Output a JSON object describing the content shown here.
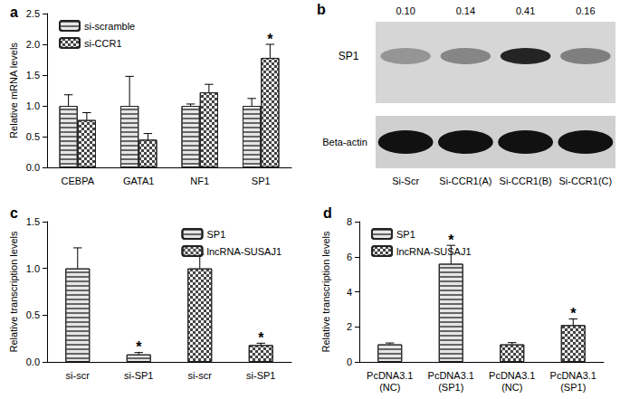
{
  "chart_data": [
    {
      "type": "bar",
      "title": "a",
      "categories": [
        "CEBPA",
        "GATA1",
        "NF1",
        "SP1"
      ],
      "series": [
        {
          "name": "si-scramble",
          "color": "#e6e6e6",
          "values": [
            1.0,
            1.0,
            1.0,
            1.0
          ],
          "errors": [
            0.18,
            0.48,
            0.03,
            0.12
          ]
        },
        {
          "name": "si-CCR1",
          "color": "#f2f2f2",
          "values": [
            0.77,
            0.45,
            1.22,
            1.78
          ],
          "errors": [
            0.12,
            0.1,
            0.13,
            0.22
          ]
        }
      ],
      "y_label": "Relative mRNA levels",
      "ylim": [
        0,
        2.5
      ],
      "yticks": [
        {
          "value": 0,
          "label": "0.0"
        },
        0.5,
        {
          "value": 1,
          "label": "1.0"
        },
        1.5,
        {
          "value": 2,
          "label": "2.0"
        },
        2.5
      ],
      "annotations": [
        {
          "text": "*",
          "category_index": 3,
          "series": "si-CCR1"
        }
      ],
      "legend": "top-left",
      "grid": false
    },
    {
      "type": "bar",
      "title": "c",
      "categories": [
        "si-scr",
        "si-SP1",
        "si-scr",
        "si-SP1"
      ],
      "series": [
        {
          "name": "SP1",
          "color": "#e6e6e6",
          "values": [
            1.0,
            0.08,
            null,
            null
          ],
          "errors": [
            0.22,
            0.02,
            null,
            null
          ]
        },
        {
          "name": "lncRNA-SUSAJ1",
          "color": "#f2f2f2",
          "values": [
            null,
            null,
            1.0,
            0.18
          ],
          "errors": [
            null,
            null,
            0.15,
            0.02
          ]
        }
      ],
      "y_label": "Relative transcription levels",
      "ylim": [
        0,
        1.5
      ],
      "yticks": [
        {
          "value": 0,
          "label": "0.0"
        },
        0.5,
        {
          "value": 1,
          "label": "1.0"
        },
        1.5
      ],
      "annotations": [
        {
          "text": "*",
          "category_index": 1,
          "series": "SP1"
        },
        {
          "text": "*",
          "category_index": 3,
          "series": "lncRNA-SUSAJ1"
        }
      ],
      "legend": "top-right",
      "grid": false
    },
    {
      "type": "bar",
      "title": "d",
      "categories": [
        "PcDNA3.1\n(NC)",
        "PcDNA3.1\n(SP1)",
        "PcDNA3.1\n(NC)",
        "PcDNA3.1\n(SP1)"
      ],
      "series": [
        {
          "name": "SP1",
          "color": "#e6e6e6",
          "values": [
            1.0,
            5.6,
            null,
            null
          ],
          "errors": [
            0.08,
            1.05,
            null,
            null
          ]
        },
        {
          "name": "lncRNA-SUSAJ1",
          "color": "#f2f2f2",
          "values": [
            null,
            null,
            1.0,
            2.1
          ],
          "errors": [
            null,
            null,
            0.1,
            0.35
          ]
        }
      ],
      "y_label": "Relative transcription levels",
      "ylim": [
        0,
        8
      ],
      "yticks": [
        0,
        2,
        4,
        6,
        8
      ],
      "annotations": [
        {
          "text": "*",
          "category_index": 1,
          "series": "SP1"
        },
        {
          "text": "*",
          "category_index": 3,
          "series": "lncRNA-SUSAJ1"
        }
      ],
      "legend": "top-left",
      "grid": false
    }
  ],
  "blot": {
    "title": "b",
    "lanes": [
      "Si-Scr",
      "Si-CCR1(A)",
      "Si-CCR1(B)",
      "Si-CCR1(C)"
    ],
    "rows": [
      "SP1",
      "Beta-actin"
    ],
    "values": [
      0.1,
      0.14,
      0.41,
      0.16
    ],
    "value_labels": [
      "0.10",
      "0.14",
      "0.41",
      "0.16"
    ]
  }
}
